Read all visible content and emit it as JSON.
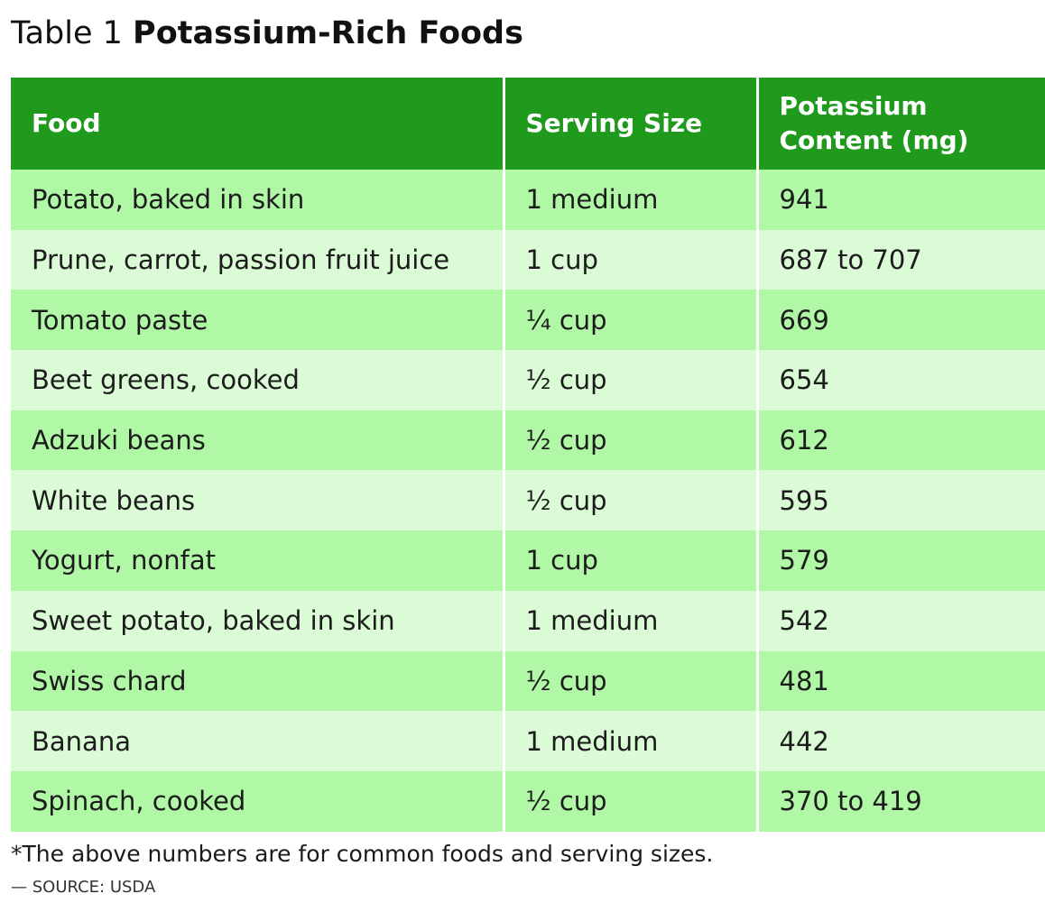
{
  "title": {
    "prefix": "Table 1",
    "main": "Potassium-Rich Foods"
  },
  "table": {
    "headers": [
      "Food",
      "Serving Size",
      "Potassium Content (mg)"
    ],
    "rows": [
      [
        "Potato, baked in skin",
        "1 medium",
        "941"
      ],
      [
        "Prune, carrot, passion fruit juice",
        "1 cup",
        "687 to 707"
      ],
      [
        "Tomato paste",
        "¼ cup",
        "669"
      ],
      [
        "Beet greens, cooked",
        "½ cup",
        "654"
      ],
      [
        "Adzuki beans",
        "½ cup",
        "612"
      ],
      [
        "White beans",
        "½ cup",
        "595"
      ],
      [
        "Yogurt, nonfat",
        "1 cup",
        "579"
      ],
      [
        "Sweet potato, baked in skin",
        "1 medium",
        "542"
      ],
      [
        "Swiss chard",
        "½ cup",
        "481"
      ],
      [
        "Banana",
        "1 medium",
        "442"
      ],
      [
        "Spinach, cooked",
        "½ cup",
        "370 to 419"
      ]
    ]
  },
  "footnote": "*The above numbers are for common foods and serving sizes.",
  "source": "— SOURCE: USDA",
  "colors": {
    "header_bg": "#1f9a1c",
    "row_dark": "#b0f7a6",
    "row_light": "#dafbd5"
  }
}
